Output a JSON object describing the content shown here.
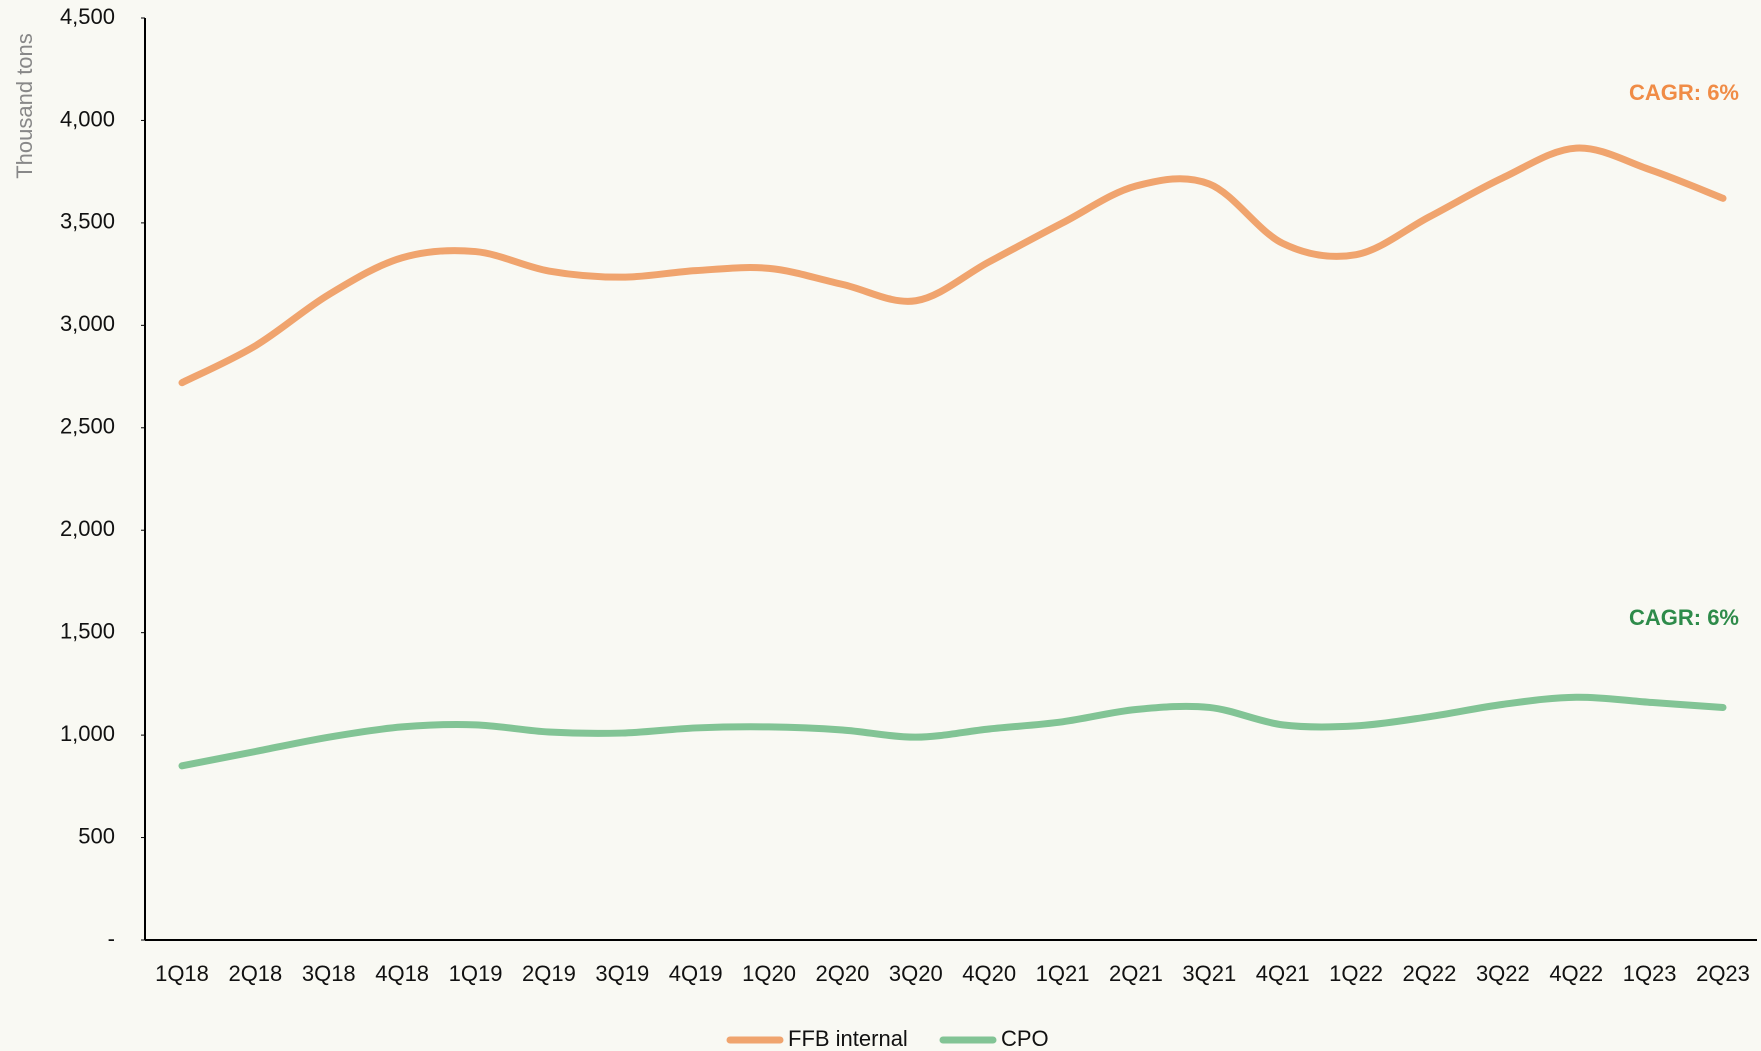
{
  "chart_data": {
    "type": "line",
    "y_axis_label": "Thousand tons",
    "categories": [
      "1Q18",
      "2Q18",
      "3Q18",
      "4Q18",
      "1Q19",
      "2Q19",
      "3Q19",
      "4Q19",
      "1Q20",
      "2Q20",
      "3Q20",
      "4Q20",
      "1Q21",
      "2Q21",
      "3Q21",
      "4Q21",
      "1Q22",
      "2Q22",
      "3Q22",
      "4Q22",
      "1Q23",
      "2Q23"
    ],
    "series": [
      {
        "name": "FFB internal",
        "color": "#f0a46e",
        "values": [
          2720,
          2900,
          3150,
          3330,
          3360,
          3265,
          3235,
          3267,
          3278,
          3200,
          3120,
          3310,
          3500,
          3680,
          3690,
          3400,
          3345,
          3530,
          3720,
          3865,
          3760,
          3620
        ]
      },
      {
        "name": "CPO",
        "color": "#82c495",
        "values": [
          850,
          920,
          990,
          1040,
          1050,
          1015,
          1010,
          1035,
          1040,
          1025,
          990,
          1030,
          1065,
          1125,
          1135,
          1050,
          1045,
          1090,
          1150,
          1185,
          1160,
          1135
        ]
      }
    ],
    "annotations": [
      {
        "text": "CAGR: 6%",
        "color": "#f08c46"
      },
      {
        "text": "CAGR: 6%",
        "color": "#2e8b4a"
      }
    ],
    "ylim": [
      0,
      4500
    ],
    "yticks": [
      {
        "value": 0,
        "label": "-"
      },
      500,
      {
        "value": 1000,
        "label": "1,000"
      },
      {
        "value": 1500,
        "label": "1,500"
      },
      {
        "value": 2000,
        "label": "2,000"
      },
      {
        "value": 2500,
        "label": "2,500"
      },
      {
        "value": 3000,
        "label": "3,000"
      },
      {
        "value": 3500,
        "label": "3,500"
      },
      {
        "value": 4000,
        "label": "4,000"
      },
      {
        "value": 4500,
        "label": "4,500"
      }
    ],
    "grid": false,
    "legend": "bottom"
  }
}
